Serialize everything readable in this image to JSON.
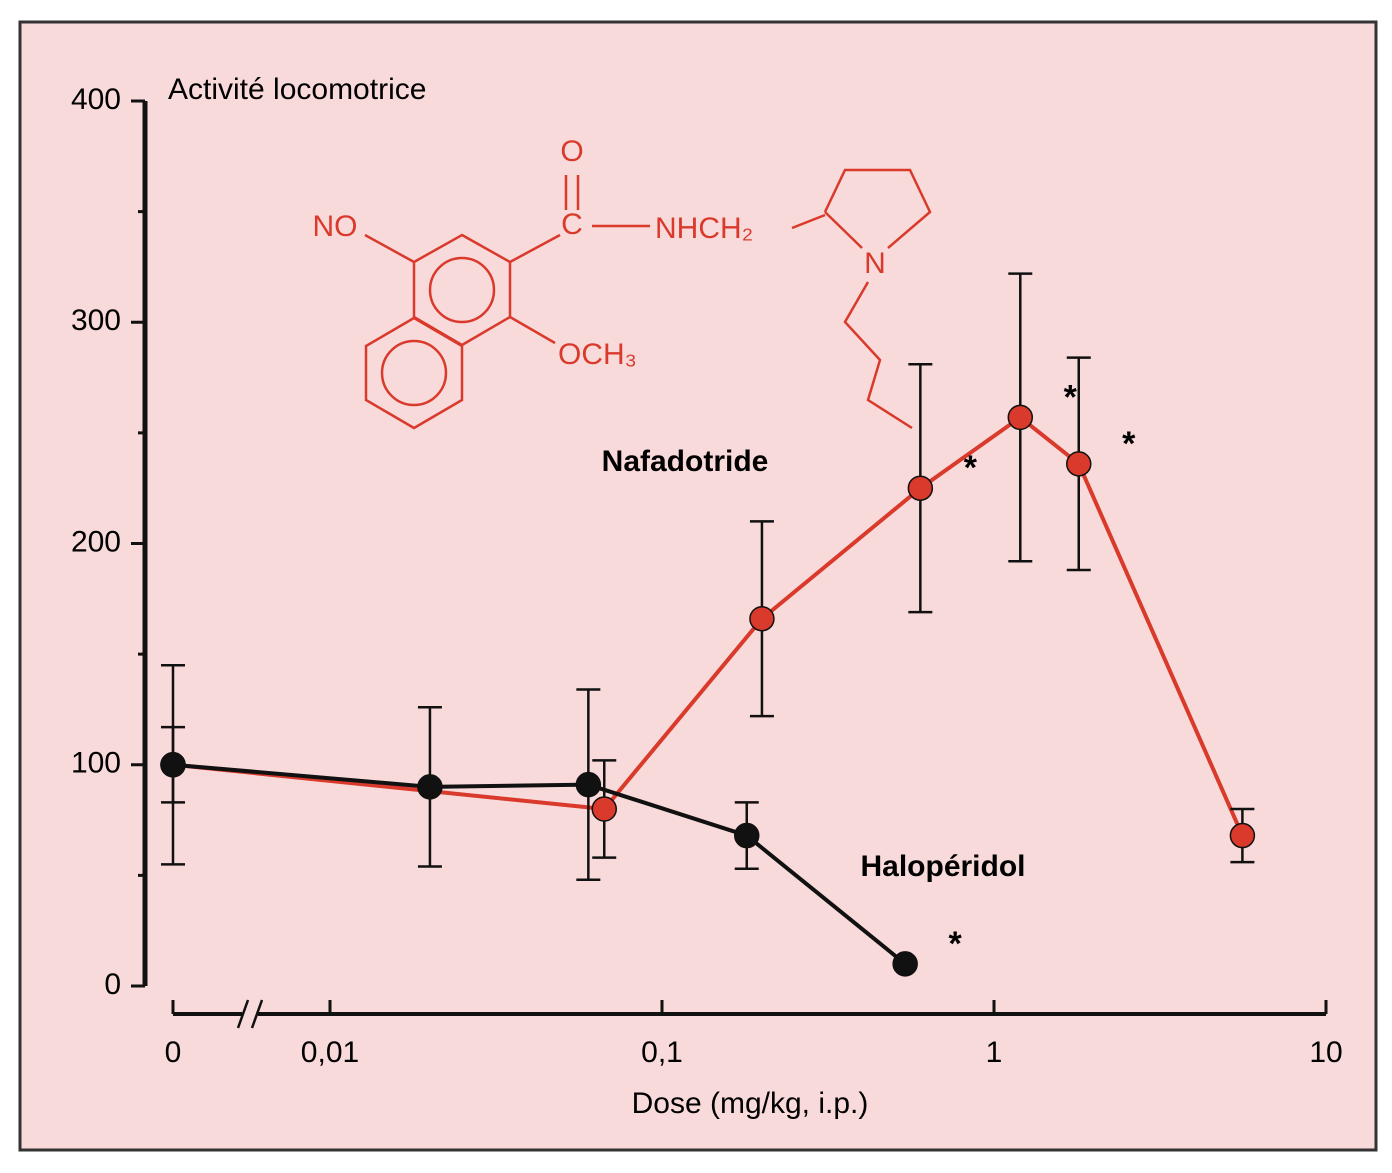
{
  "chart_data": {
    "type": "line",
    "ylabel": "Activité locomotrice",
    "xlabel": "Dose (mg/kg, i.p.)",
    "xscale": "log",
    "xbreak": true,
    "xlim": [
      0,
      10
    ],
    "xticks": [
      0,
      {
        "value": 0.01,
        "label": "0,01"
      },
      {
        "value": 0.1,
        "label": "0,1"
      },
      1,
      10
    ],
    "ylim": [
      0,
      400
    ],
    "yticks": [
      0,
      100,
      200,
      300,
      400
    ],
    "yminor_ticks": [
      50,
      150,
      250,
      350
    ],
    "series": [
      {
        "name": "Nafadotride",
        "color": "#d93a2b",
        "x": [
          0,
          0.067,
          0.2,
          0.6,
          1.2,
          1.8,
          5.6
        ],
        "values": [
          100,
          80,
          166,
          225,
          257,
          236,
          68
        ],
        "errors": [
          17,
          22,
          44,
          56,
          65,
          48,
          12
        ],
        "significance": [
          null,
          null,
          null,
          "*",
          "*",
          "*",
          null
        ]
      },
      {
        "name": "Halopéridol",
        "color": "#111111",
        "x": [
          0,
          0.02,
          0.06,
          0.18,
          0.54
        ],
        "values": [
          100,
          90,
          91,
          68,
          10
        ],
        "errors": [
          45,
          36,
          43,
          15,
          null
        ],
        "significance": [
          null,
          null,
          null,
          null,
          "*"
        ]
      }
    ]
  },
  "structure": {
    "labels": [
      "O",
      "NO",
      "C",
      "NHCH₂",
      "N",
      "OCH₃"
    ]
  }
}
